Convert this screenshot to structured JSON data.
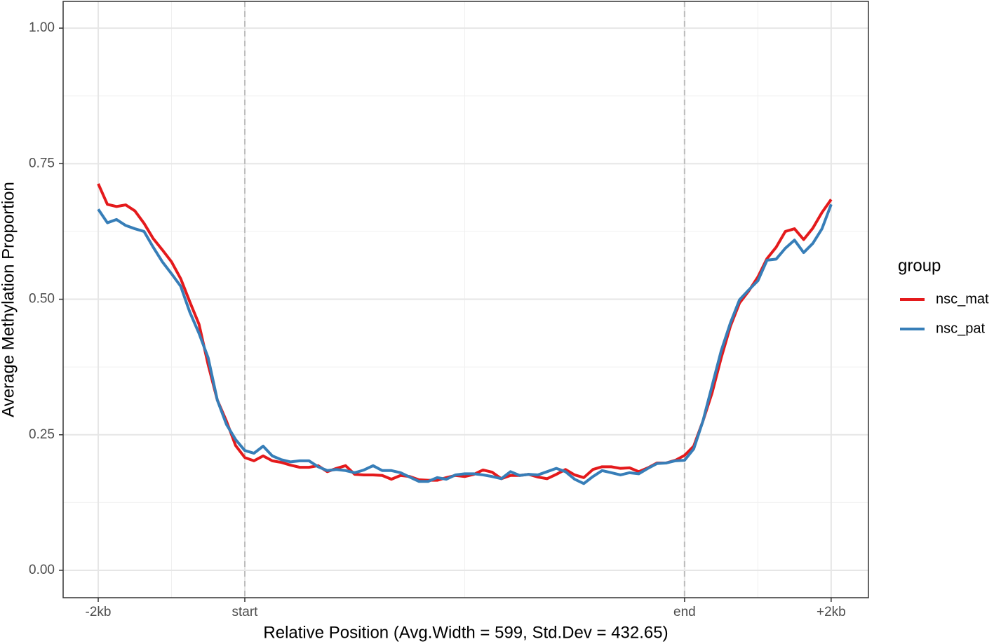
{
  "chart_data": {
    "type": "line",
    "xlabel": "Relative Position (Avg.Width = 599, Std.Dev = 432.65)",
    "ylabel": "Average Methylation Proportion",
    "x": [
      0,
      1,
      2,
      3,
      4,
      5,
      6,
      7,
      8,
      9,
      10,
      11,
      12,
      13,
      14,
      15,
      16,
      17,
      18,
      19,
      20,
      21,
      22,
      23,
      24,
      25,
      26,
      27,
      28,
      29,
      30,
      31,
      32,
      33,
      34,
      35,
      36,
      37,
      38,
      39,
      40,
      41,
      42,
      43,
      44,
      45,
      46,
      47,
      48,
      49,
      50,
      51,
      52,
      53,
      54,
      55,
      56,
      57,
      58,
      59,
      60,
      61,
      62,
      63,
      64,
      65,
      66,
      67,
      68,
      69,
      70,
      71,
      72,
      73,
      74,
      75,
      76,
      77,
      78,
      79,
      80
    ],
    "series": [
      {
        "name": "nsc_mat",
        "color": "#e41a1c",
        "values": [
          0.713,
          0.675,
          0.671,
          0.674,
          0.663,
          0.64,
          0.612,
          0.591,
          0.569,
          0.538,
          0.495,
          0.454,
          0.379,
          0.314,
          0.275,
          0.23,
          0.208,
          0.202,
          0.211,
          0.202,
          0.199,
          0.194,
          0.19,
          0.19,
          0.193,
          0.182,
          0.188,
          0.193,
          0.177,
          0.176,
          0.176,
          0.175,
          0.168,
          0.175,
          0.173,
          0.167,
          0.166,
          0.166,
          0.171,
          0.175,
          0.173,
          0.177,
          0.185,
          0.181,
          0.169,
          0.175,
          0.175,
          0.177,
          0.172,
          0.169,
          0.177,
          0.186,
          0.176,
          0.171,
          0.186,
          0.191,
          0.191,
          0.188,
          0.189,
          0.182,
          0.189,
          0.198,
          0.198,
          0.203,
          0.212,
          0.229,
          0.275,
          0.327,
          0.392,
          0.45,
          0.493,
          0.515,
          0.541,
          0.575,
          0.596,
          0.625,
          0.63,
          0.61,
          0.631,
          0.66,
          0.684
        ]
      },
      {
        "name": "nsc_pat",
        "color": "#377eb8",
        "values": [
          0.666,
          0.641,
          0.647,
          0.636,
          0.63,
          0.625,
          0.596,
          0.569,
          0.547,
          0.524,
          0.476,
          0.437,
          0.392,
          0.314,
          0.269,
          0.241,
          0.221,
          0.216,
          0.229,
          0.211,
          0.204,
          0.2,
          0.202,
          0.202,
          0.191,
          0.184,
          0.186,
          0.184,
          0.18,
          0.185,
          0.193,
          0.184,
          0.184,
          0.18,
          0.172,
          0.164,
          0.164,
          0.171,
          0.168,
          0.176,
          0.178,
          0.178,
          0.176,
          0.173,
          0.169,
          0.182,
          0.175,
          0.177,
          0.176,
          0.182,
          0.188,
          0.182,
          0.168,
          0.16,
          0.173,
          0.184,
          0.18,
          0.176,
          0.18,
          0.178,
          0.188,
          0.197,
          0.198,
          0.202,
          0.203,
          0.224,
          0.275,
          0.34,
          0.405,
          0.456,
          0.499,
          0.517,
          0.534,
          0.572,
          0.574,
          0.594,
          0.609,
          0.586,
          0.603,
          0.63,
          0.675
        ]
      }
    ],
    "xlim": [
      -3.83,
      84.07
    ],
    "xticks": [
      {
        "value": 0,
        "label": "-2kb"
      },
      {
        "value": 16,
        "label": "start"
      },
      {
        "value": 64,
        "label": "end"
      },
      {
        "value": 80,
        "label": "+2kb"
      }
    ],
    "xminor": [
      8,
      40,
      72
    ],
    "ylim": [
      -0.0505,
      1.0493
    ],
    "yticks": [
      {
        "value": 0,
        "label": "0.00"
      },
      {
        "value": 0.25,
        "label": "0.25"
      },
      {
        "value": 0.5,
        "label": "0.50"
      },
      {
        "value": 0.75,
        "label": "0.75"
      },
      {
        "value": 1,
        "label": "1.00"
      }
    ],
    "yminor": [
      0.125,
      0.375,
      0.625,
      0.875
    ],
    "vlines": [
      16,
      64
    ],
    "grid": true,
    "legend": {
      "title": "group",
      "position": "right"
    }
  }
}
